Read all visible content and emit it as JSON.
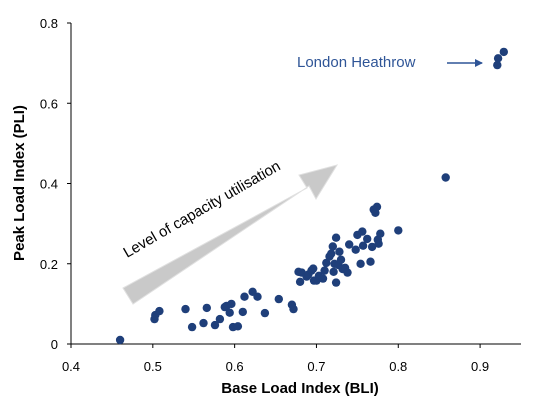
{
  "colors": {
    "marker": "#1f3f7a",
    "annotation_text": "#2f5597",
    "arrow_fill": "#c4c4c4",
    "axis": "#000000"
  },
  "chart_data": {
    "type": "scatter",
    "title": "",
    "xlabel": "Base Load Index (BLI)",
    "ylabel": "Peak Load Index (PLI)",
    "xlim": [
      0.4,
      0.95
    ],
    "ylim": [
      0,
      0.8
    ],
    "xticks": [
      "0.4",
      "0.5",
      "0.6",
      "0.7",
      "0.8",
      "0.9"
    ],
    "xtick_values": [
      0.4,
      0.5,
      0.6,
      0.7,
      0.8,
      0.9
    ],
    "yticks": [
      "0",
      "0.2",
      "0.4",
      "0.6",
      "0.8"
    ],
    "ytick_values": [
      0,
      0.2,
      0.4,
      0.6,
      0.8
    ],
    "grid": false,
    "legend": "none",
    "annotations": {
      "callout": "London Heathrow",
      "trend_arrow": "Level of capacity utilisation"
    },
    "series": [
      {
        "points": [
          [
            0.46,
            0.01
          ],
          [
            0.502,
            0.062
          ],
          [
            0.503,
            0.072
          ],
          [
            0.508,
            0.082
          ],
          [
            0.54,
            0.087
          ],
          [
            0.548,
            0.042
          ],
          [
            0.562,
            0.052
          ],
          [
            0.566,
            0.09
          ],
          [
            0.576,
            0.047
          ],
          [
            0.582,
            0.062
          ],
          [
            0.588,
            0.092
          ],
          [
            0.59,
            0.095
          ],
          [
            0.594,
            0.078
          ],
          [
            0.596,
            0.1
          ],
          [
            0.598,
            0.042
          ],
          [
            0.604,
            0.044
          ],
          [
            0.61,
            0.08
          ],
          [
            0.612,
            0.118
          ],
          [
            0.622,
            0.13
          ],
          [
            0.628,
            0.118
          ],
          [
            0.637,
            0.077
          ],
          [
            0.654,
            0.112
          ],
          [
            0.67,
            0.098
          ],
          [
            0.672,
            0.087
          ],
          [
            0.678,
            0.18
          ],
          [
            0.68,
            0.155
          ],
          [
            0.682,
            0.178
          ],
          [
            0.688,
            0.168
          ],
          [
            0.69,
            0.173
          ],
          [
            0.694,
            0.183
          ],
          [
            0.696,
            0.188
          ],
          [
            0.697,
            0.158
          ],
          [
            0.7,
            0.158
          ],
          [
            0.703,
            0.17
          ],
          [
            0.708,
            0.163
          ],
          [
            0.71,
            0.183
          ],
          [
            0.712,
            0.202
          ],
          [
            0.716,
            0.218
          ],
          [
            0.718,
            0.225
          ],
          [
            0.72,
            0.243
          ],
          [
            0.721,
            0.18
          ],
          [
            0.722,
            0.2
          ],
          [
            0.724,
            0.153
          ],
          [
            0.724,
            0.265
          ],
          [
            0.727,
            0.197
          ],
          [
            0.728,
            0.23
          ],
          [
            0.73,
            0.21
          ],
          [
            0.732,
            0.187
          ],
          [
            0.735,
            0.19
          ],
          [
            0.738,
            0.178
          ],
          [
            0.74,
            0.248
          ],
          [
            0.748,
            0.235
          ],
          [
            0.75,
            0.272
          ],
          [
            0.754,
            0.2
          ],
          [
            0.756,
            0.28
          ],
          [
            0.757,
            0.245
          ],
          [
            0.762,
            0.262
          ],
          [
            0.766,
            0.205
          ],
          [
            0.768,
            0.242
          ],
          [
            0.77,
            0.335
          ],
          [
            0.772,
            0.327
          ],
          [
            0.774,
            0.342
          ],
          [
            0.775,
            0.26
          ],
          [
            0.776,
            0.25
          ],
          [
            0.778,
            0.275
          ],
          [
            0.8,
            0.283
          ],
          [
            0.858,
            0.415
          ],
          [
            0.921,
            0.695
          ],
          [
            0.922,
            0.712
          ],
          [
            0.929,
            0.728
          ]
        ]
      }
    ]
  }
}
